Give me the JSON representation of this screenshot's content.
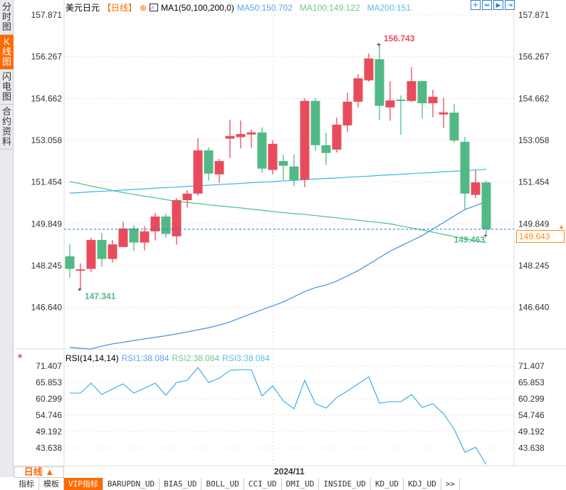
{
  "sidebar": {
    "tabs": [
      {
        "label": "分时图"
      },
      {
        "label": "K线图",
        "active": true
      },
      {
        "label": "闪电图"
      },
      {
        "label": "合约资料"
      }
    ]
  },
  "header": {
    "symbol": "美元日元",
    "period": "【日线】",
    "indicator": "MA1(50,100,200,0)",
    "ma50": "MA50:150.702",
    "ma100": "MA100:149.122",
    "ma200": "MA200:151."
  },
  "toolbar": {
    "icons": [
      "crosshair-icon",
      "zoom-range-icon",
      "play-icon",
      "scroll-end-icon"
    ]
  },
  "colors": {
    "up": "#e84c5c",
    "down": "#52b986",
    "ma50": "#3d8fe6",
    "ma100": "#4cc07c",
    "ma200": "#3cb4e8",
    "rsi": "#2ea8e6",
    "accent": "#ff6a00",
    "last_price": "#1a6fe0"
  },
  "rsi_header": {
    "title": "RSI(14,14,14)",
    "rsi1": "RSI1:38.084",
    "rsi2": "RSI2:38.084",
    "rsi3": "RSI3:38.084"
  },
  "bottom": {
    "period_button": "日线 ▲",
    "date_label": "2024/11",
    "tabs": [
      "指标",
      "模板",
      "VIP指标",
      "BARUPDN_UD",
      "BIAS_UD",
      "BOLL_UD",
      "CCI_UD",
      "DMI_UD",
      "INSIDE_UD",
      "KD_UD",
      "KDJ_UD",
      ">>"
    ],
    "active_tab": 2
  },
  "last_price": "149.643",
  "chart_data": [
    {
      "type": "candlestick",
      "title": "美元日元",
      "ylim": [
        145.0,
        157.871
      ],
      "yticks": [
        "157.871",
        "156.267",
        "154.662",
        "153.058",
        "151.454",
        "149.849",
        "148.245",
        "146.640"
      ],
      "xlabel": "2024/11",
      "annotations": {
        "high": "156.743",
        "low": "147.341",
        "last_low": "149.463"
      },
      "ohlc": [
        [
          148.6,
          149.06,
          147.78,
          148.12
        ],
        [
          148.1,
          148.33,
          147.341,
          148.1
        ],
        [
          148.12,
          149.31,
          148.0,
          149.23
        ],
        [
          149.23,
          149.5,
          148.2,
          148.5
        ],
        [
          148.5,
          149.23,
          148.36,
          149.06
        ],
        [
          148.96,
          149.94,
          148.96,
          149.67
        ],
        [
          149.67,
          149.8,
          148.8,
          149.13
        ],
        [
          149.13,
          149.75,
          148.83,
          149.56
        ],
        [
          149.56,
          150.27,
          149.21,
          150.13
        ],
        [
          150.13,
          150.24,
          149.32,
          149.46
        ],
        [
          149.37,
          150.84,
          149.05,
          150.76
        ],
        [
          150.76,
          151.14,
          150.47,
          151.01
        ],
        [
          151.01,
          153.14,
          150.93,
          152.67
        ],
        [
          152.67,
          152.78,
          151.51,
          151.78
        ],
        [
          151.75,
          152.35,
          151.42,
          152.26
        ],
        [
          153.12,
          153.85,
          152.38,
          153.22
        ],
        [
          153.18,
          153.82,
          152.74,
          153.3
        ],
        [
          153.28,
          153.47,
          152.77,
          153.36
        ],
        [
          153.36,
          153.55,
          151.81,
          151.97
        ],
        [
          151.92,
          153.06,
          151.75,
          152.92
        ],
        [
          152.26,
          152.51,
          151.53,
          152.08
        ],
        [
          152.05,
          152.51,
          151.29,
          151.53
        ],
        [
          151.55,
          154.67,
          151.26,
          154.57
        ],
        [
          154.57,
          154.67,
          152.66,
          152.87
        ],
        [
          152.87,
          153.34,
          152.11,
          152.57
        ],
        [
          152.7,
          153.93,
          152.59,
          153.66
        ],
        [
          153.63,
          154.89,
          153.39,
          154.54
        ],
        [
          154.54,
          155.6,
          154.32,
          155.44
        ],
        [
          155.36,
          156.39,
          155.3,
          156.2
        ],
        [
          156.17,
          156.743,
          153.84,
          154.38
        ],
        [
          154.32,
          155.33,
          153.81,
          154.59
        ],
        [
          154.62,
          154.78,
          153.27,
          154.57
        ],
        [
          154.57,
          155.87,
          154.53,
          155.33
        ],
        [
          155.33,
          155.35,
          153.89,
          154.48
        ],
        [
          154.48,
          155.0,
          153.94,
          154.73
        ],
        [
          154.05,
          154.69,
          153.52,
          154.13
        ],
        [
          154.12,
          154.45,
          152.96,
          153.05
        ],
        [
          153.0,
          153.19,
          150.4,
          151.01
        ],
        [
          150.96,
          151.91,
          150.84,
          151.44
        ],
        [
          151.44,
          151.5,
          149.463,
          149.643
        ]
      ],
      "series": [
        {
          "name": "MA50",
          "values": [
            145.1,
            145.07,
            145.04,
            145.15,
            145.24,
            145.3,
            145.37,
            145.43,
            145.49,
            145.55,
            145.62,
            145.7,
            145.78,
            145.86,
            145.96,
            146.08,
            146.24,
            146.4,
            146.55,
            146.7,
            146.85,
            147.05,
            147.25,
            147.4,
            147.5,
            147.65,
            147.85,
            148.05,
            148.3,
            148.55,
            148.8,
            149.0,
            149.2,
            149.4,
            149.65,
            149.9,
            150.15,
            150.4,
            150.55,
            150.702
          ]
        },
        {
          "name": "MA100",
          "values": [
            151.47,
            151.39,
            151.3,
            151.22,
            151.13,
            151.05,
            150.98,
            150.91,
            150.85,
            150.78,
            150.71,
            150.67,
            150.63,
            150.58,
            150.54,
            150.5,
            150.46,
            150.41,
            150.37,
            150.32,
            150.28,
            150.24,
            150.21,
            150.17,
            150.12,
            150.08,
            150.03,
            149.99,
            149.94,
            149.9,
            149.85,
            149.77,
            149.69,
            149.61,
            149.53,
            149.44,
            149.36,
            149.28,
            149.2,
            149.122
          ]
        },
        {
          "name": "MA200",
          "values": [
            151.03,
            151.05,
            151.08,
            151.1,
            151.12,
            151.15,
            151.17,
            151.19,
            151.22,
            151.24,
            151.26,
            151.29,
            151.31,
            151.33,
            151.36,
            151.38,
            151.4,
            151.43,
            151.45,
            151.47,
            151.5,
            151.52,
            151.54,
            151.57,
            151.59,
            151.61,
            151.64,
            151.66,
            151.68,
            151.71,
            151.73,
            151.75,
            151.78,
            151.8,
            151.82,
            151.85,
            151.87,
            151.89,
            151.92,
            151.94
          ]
        }
      ]
    },
    {
      "type": "line",
      "title": "RSI(14,14,14)",
      "ylim": [
        38,
        71.407
      ],
      "yticks": [
        "71.407",
        "65.853",
        "60.299",
        "54.746",
        "49.192",
        "43.638"
      ],
      "series": [
        {
          "name": "RSI1",
          "values": [
            62.23,
            62.23,
            65.61,
            61.75,
            63.68,
            65.37,
            62.23,
            63.92,
            65.61,
            61.51,
            65.85,
            66.57,
            70.92,
            65.85,
            67.3,
            69.96,
            70.2,
            70.2,
            61.26,
            64.65,
            59.57,
            56.92,
            66.58,
            58.61,
            57.16,
            60.78,
            62.95,
            65.37,
            67.78,
            58.85,
            59.33,
            59.33,
            61.75,
            57.4,
            58.61,
            55.23,
            49.91,
            42.18,
            43.88,
            38.084
          ]
        }
      ]
    }
  ]
}
